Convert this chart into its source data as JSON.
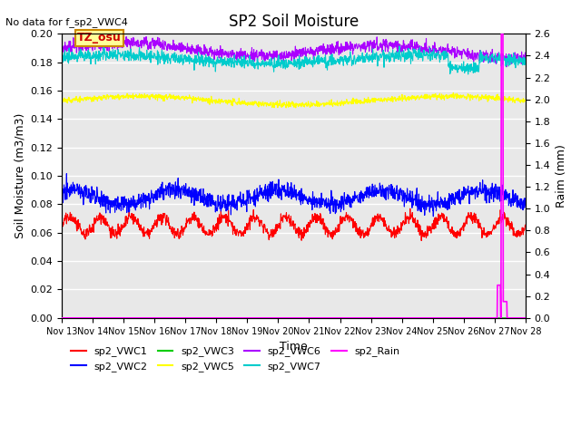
{
  "title": "SP2 Soil Moisture",
  "no_data_text": "No data for f_sp2_VWC4",
  "annotation_text": "TZ_osu",
  "annotation_color": "#cc0000",
  "annotation_bg": "#ffff99",
  "annotation_border": "#cc8800",
  "xlabel": "Time",
  "ylabel_left": "Soil Moisture (m3/m3)",
  "ylabel_right": "Raim (mm)",
  "xlim_start": 0,
  "xlim_end": 15,
  "ylim_left": [
    0.0,
    0.2
  ],
  "ylim_right": [
    0.0,
    2.6
  ],
  "xtick_labels": [
    "Nov 13",
    "Nov 14",
    "Nov 15",
    "Nov 16",
    "Nov 17",
    "Nov 18",
    "Nov 19",
    "Nov 20",
    "Nov 21",
    "Nov 22",
    "Nov 23",
    "Nov 24",
    "Nov 25",
    "Nov 26",
    "Nov 27",
    "Nov 28"
  ],
  "n_points": 1440,
  "series": {
    "sp2_VWC1": {
      "color": "#ff0000",
      "base": 0.065,
      "amplitude": 0.006,
      "freq": 1.0
    },
    "sp2_VWC2": {
      "color": "#0000ff",
      "base": 0.085,
      "amplitude": 0.005,
      "freq": 1.0
    },
    "sp2_VWC3": {
      "color": "#00cc00",
      "base": 0.0,
      "amplitude": 0.0,
      "freq": 0.0
    },
    "sp2_VWC5": {
      "color": "#ffff00",
      "base": 0.153,
      "amplitude": 0.003,
      "freq": 0.5
    },
    "sp2_VWC6": {
      "color": "#aa00ff",
      "base": 0.19,
      "amplitude": 0.004,
      "freq": 0.8
    },
    "sp2_VWC7": {
      "color": "#00cccc",
      "base": 0.182,
      "amplitude": 0.003,
      "freq": 0.5
    }
  },
  "rain_color": "#ff00ff",
  "rain_spike_x": 14.2,
  "rain_spike_height": 2.6,
  "background_color": "#e8e8e8",
  "grid_color": "#ffffff",
  "legend_entries": [
    {
      "label": "sp2_VWC1",
      "color": "#ff0000"
    },
    {
      "label": "sp2_VWC2",
      "color": "#0000ff"
    },
    {
      "label": "sp2_VWC3",
      "color": "#00cc00"
    },
    {
      "label": "sp2_VWC5",
      "color": "#ffff00"
    },
    {
      "label": "sp2_VWC6",
      "color": "#aa00ff"
    },
    {
      "label": "sp2_VWC7",
      "color": "#00cccc"
    },
    {
      "label": "sp2_Rain",
      "color": "#ff00ff"
    }
  ]
}
